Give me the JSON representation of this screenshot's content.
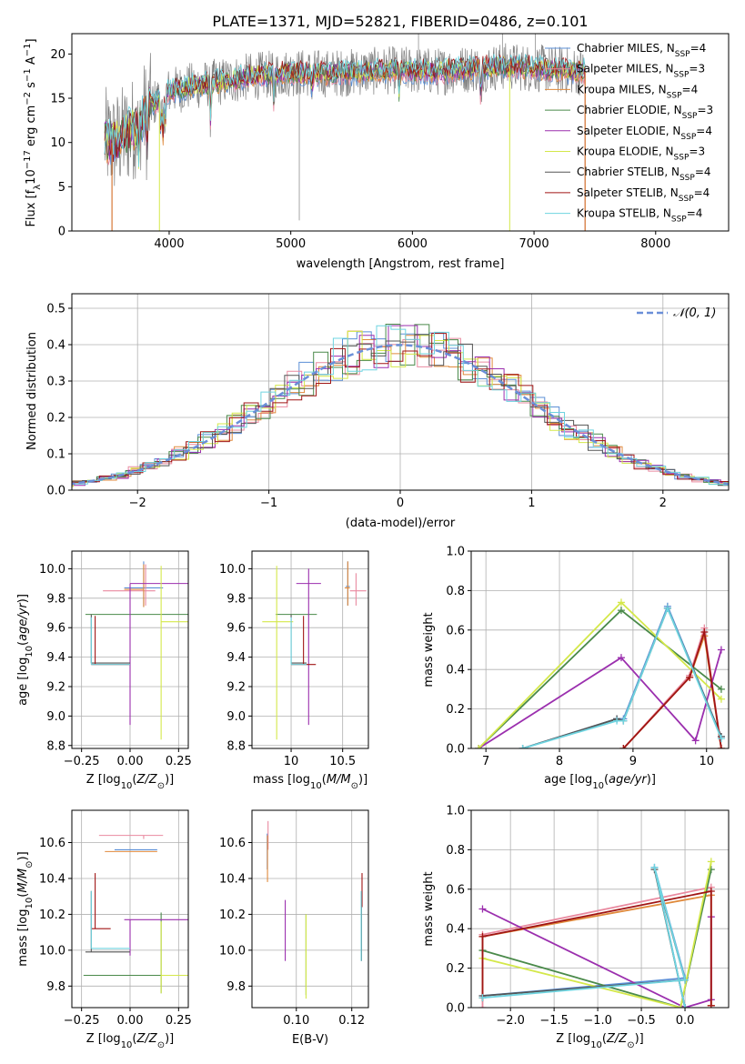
{
  "figure_title": "PLATE=1371, MJD=52821, FIBERID=0486, z=0.101",
  "colors": {
    "Chabrier MILES": "#5b8fd6",
    "Salpeter MILES": "#e98aa0",
    "Kroupa MILES": "#e08a3c",
    "Chabrier ELODIE": "#4a8a4a",
    "Salpeter ELODIE": "#9b2fae",
    "Kroupa ELODIE": "#d4e84a",
    "Chabrier STELIB": "#555555",
    "Salpeter STELIB": "#a01515",
    "Kroupa STELIB": "#6ed4e0"
  },
  "chart_data": [
    {
      "id": "spectrum",
      "type": "line",
      "title": "PLATE=1371, MJD=52821, FIBERID=0486, z=0.101",
      "xlabel": "wavelength [Angstrom, rest frame]",
      "ylabel": "Flux [f_λ 10^-17 erg cm^-2 s^-1 A^-1]",
      "xlim": [
        3200,
        8600
      ],
      "ylim": [
        0,
        22.3
      ],
      "xticks": [
        4000,
        5000,
        6000,
        7000,
        8000
      ],
      "yticks": [
        0,
        5,
        10,
        15,
        20
      ],
      "legend_position": "right",
      "legend": [
        {
          "label": "Chabrier MILES, N",
          "sub": "SSP",
          "suffix": "=4"
        },
        {
          "label": "Salpeter MILES, N",
          "sub": "SSP",
          "suffix": "=3"
        },
        {
          "label": "Kroupa MILES, N",
          "sub": "SSP",
          "suffix": "=4"
        },
        {
          "label": "Chabrier ELODIE, N",
          "sub": "SSP",
          "suffix": "=3"
        },
        {
          "label": "Salpeter ELODIE, N",
          "sub": "SSP",
          "suffix": "=4"
        },
        {
          "label": "Kroupa ELODIE, N",
          "sub": "SSP",
          "suffix": "=3"
        },
        {
          "label": "Chabrier STELIB, N",
          "sub": "SSP",
          "suffix": "=4"
        },
        {
          "label": "Salpeter STELIB, N",
          "sub": "SSP",
          "suffix": "=4"
        },
        {
          "label": "Kroupa STELIB, N",
          "sub": "SSP",
          "suffix": "=4"
        }
      ],
      "continuum": {
        "x": [
          3450,
          3550,
          3700,
          3850,
          4000,
          4200,
          4400,
          4700,
          5000,
          5300,
          5600,
          5900,
          6200,
          6500,
          6800,
          7100,
          7400
        ],
        "y": [
          10.5,
          9.8,
          11.5,
          14.2,
          15.8,
          16.4,
          16.8,
          17.5,
          17.9,
          17.8,
          18.0,
          18.2,
          18.0,
          18.4,
          18.6,
          18.3,
          18.0
        ]
      },
      "model_cutoffs": [
        {
          "model": "Salpeter STELIB",
          "start": 3530,
          "end": 7420
        },
        {
          "model": "Kroupa MILES",
          "start": 3530,
          "end": 7420
        },
        {
          "model": "Kroupa ELODIE",
          "start": 3920,
          "end": 6800
        }
      ]
    },
    {
      "id": "residual-hist",
      "type": "line",
      "xlabel": "(data-model)/error",
      "ylabel": "Normed distribution",
      "xlim": [
        -2.5,
        2.5
      ],
      "ylim": [
        0,
        0.54
      ],
      "xticks": [
        -2,
        -1,
        0,
        1,
        2
      ],
      "yticks": [
        0,
        0.1,
        0.2,
        0.3,
        0.4,
        0.5
      ],
      "legend_position": "top-right",
      "legend_label": "𝒩(0, 1)",
      "gaussian": {
        "mu": 0,
        "sigma": 1
      }
    },
    {
      "id": "age-vs-z",
      "type": "scatter",
      "xlabel": "Z [log10(Z/Z⊙)]",
      "ylabel": "age [log10(age/yr)]",
      "xlim": [
        -0.3,
        0.3
      ],
      "ylim": [
        8.78,
        10.12
      ],
      "xticks": [
        -0.25,
        0.0,
        0.25
      ],
      "xtick_labels": [
        "−0.25",
        "0.00",
        "0.25"
      ],
      "yticks": [
        8.8,
        9.0,
        9.2,
        9.4,
        9.6,
        9.8,
        10.0
      ],
      "points": [
        {
          "model": "Chabrier MILES",
          "x": 0.07,
          "y": 9.87,
          "xerr": [
            0.1,
            0.1
          ],
          "yerr": [
            0.13,
            0.18
          ]
        },
        {
          "model": "Salpeter MILES",
          "x": 0.08,
          "y": 9.85,
          "xerr": [
            0.22,
            0.05
          ],
          "yerr": [
            0.1,
            0.18
          ]
        },
        {
          "model": "Kroupa MILES",
          "x": 0.07,
          "y": 9.86,
          "xerr": [
            0.1,
            0.0
          ],
          "yerr": [
            0.12,
            0.17
          ]
        },
        {
          "model": "Chabrier ELODIE",
          "x": -0.05,
          "y": 9.69,
          "xerr": [
            0.18,
            0.35
          ],
          "yerr": [
            0.0,
            0.0
          ]
        },
        {
          "model": "Salpeter ELODIE",
          "x": 0.0,
          "y": 9.9,
          "xerr": [
            0.0,
            0.3
          ],
          "yerr": [
            0.96,
            0.0
          ]
        },
        {
          "model": "Kroupa ELODIE",
          "x": 0.16,
          "y": 9.64,
          "xerr": [
            0.0,
            0.14
          ],
          "yerr": [
            0.8,
            0.38
          ]
        },
        {
          "model": "Chabrier STELIB",
          "x": -0.2,
          "y": 9.36,
          "xerr": [
            0.0,
            0.2
          ],
          "yerr": [
            0.0,
            0.33
          ]
        },
        {
          "model": "Salpeter STELIB",
          "x": -0.18,
          "y": 9.35,
          "xerr": [
            0.02,
            0.18
          ],
          "yerr": [
            0.0,
            0.33
          ]
        },
        {
          "model": "Kroupa STELIB",
          "x": -0.2,
          "y": 9.35,
          "xerr": [
            0.0,
            0.2
          ],
          "yerr": [
            0.0,
            0.32
          ]
        }
      ]
    },
    {
      "id": "age-vs-mass",
      "type": "scatter",
      "xlabel": "mass [log10(M/M⊙)]",
      "ylabel": "",
      "xlim": [
        9.62,
        10.75
      ],
      "ylim": [
        8.78,
        10.12
      ],
      "xticks": [
        10.0,
        10.5
      ],
      "yticks": [
        8.8,
        9.0,
        9.2,
        9.4,
        9.6,
        9.8,
        10.0
      ],
      "points": [
        {
          "model": "Chabrier MILES",
          "x": 10.55,
          "y": 9.88,
          "xerr": [
            0.02,
            0.02
          ],
          "yerr": [
            0.13,
            0.17
          ]
        },
        {
          "model": "Salpeter MILES",
          "x": 10.63,
          "y": 9.85,
          "xerr": [
            0.06,
            0.1
          ],
          "yerr": [
            0.1,
            0.12
          ]
        },
        {
          "model": "Kroupa MILES",
          "x": 10.55,
          "y": 9.87,
          "xerr": [
            0.03,
            0.02
          ],
          "yerr": [
            0.12,
            0.18
          ]
        },
        {
          "model": "Chabrier ELODIE",
          "x": 9.99,
          "y": 9.69,
          "xerr": [
            0.14,
            0.26
          ],
          "yerr": [
            0.0,
            0.0
          ]
        },
        {
          "model": "Salpeter ELODIE",
          "x": 10.17,
          "y": 9.9,
          "xerr": [
            0.12,
            0.12
          ],
          "yerr": [
            0.96,
            0.1
          ]
        },
        {
          "model": "Kroupa ELODIE",
          "x": 9.86,
          "y": 9.64,
          "xerr": [
            0.14,
            0.16
          ],
          "yerr": [
            0.8,
            0.38
          ]
        },
        {
          "model": "Chabrier STELIB",
          "x": 10.0,
          "y": 9.36,
          "xerr": [
            0.0,
            0.15
          ],
          "yerr": [
            0.0,
            0.33
          ]
        },
        {
          "model": "Salpeter STELIB",
          "x": 10.12,
          "y": 9.35,
          "xerr": [
            0.12,
            0.12
          ],
          "yerr": [
            0.0,
            0.33
          ]
        },
        {
          "model": "Kroupa STELIB",
          "x": 10.0,
          "y": 9.35,
          "xerr": [
            0.0,
            0.15
          ],
          "yerr": [
            0.0,
            0.32
          ]
        }
      ]
    },
    {
      "id": "weight-vs-age",
      "type": "line",
      "xlabel": "age [log10(age/yr)]",
      "ylabel": "mass weight",
      "xlim": [
        6.8,
        10.3
      ],
      "ylim": [
        0,
        1.0
      ],
      "xticks": [
        7,
        8,
        9,
        10
      ],
      "yticks": [
        0.0,
        0.2,
        0.4,
        0.6,
        0.8,
        1.0
      ],
      "series": [
        {
          "model": "Chabrier MILES",
          "x": [
            7.5,
            8.78,
            8.87,
            9.47,
            10.2
          ],
          "y": [
            0.0,
            0.15,
            0.15,
            0.72,
            0.06
          ]
        },
        {
          "model": "Salpeter MILES",
          "x": [
            8.87,
            9.77,
            9.97,
            10.2
          ],
          "y": [
            0.0,
            0.37,
            0.61,
            0.0
          ]
        },
        {
          "model": "Kroupa MILES",
          "x": [
            8.87,
            9.77,
            9.97,
            10.2
          ],
          "y": [
            0.0,
            0.36,
            0.57,
            0.0
          ]
        },
        {
          "model": "Chabrier ELODIE",
          "x": [
            6.9,
            8.84,
            10.2
          ],
          "y": [
            0.0,
            0.7,
            0.3
          ]
        },
        {
          "model": "Salpeter ELODIE",
          "x": [
            6.9,
            8.84,
            9.85,
            10.2
          ],
          "y": [
            0.0,
            0.46,
            0.04,
            0.5
          ]
        },
        {
          "model": "Kroupa ELODIE",
          "x": [
            6.9,
            8.84,
            10.2
          ],
          "y": [
            0.0,
            0.74,
            0.25
          ]
        },
        {
          "model": "Chabrier STELIB",
          "x": [
            7.5,
            8.78,
            8.87,
            9.47,
            10.2
          ],
          "y": [
            0.0,
            0.15,
            0.14,
            0.71,
            0.06
          ]
        },
        {
          "model": "Salpeter STELIB",
          "x": [
            8.87,
            9.77,
            9.97,
            10.2
          ],
          "y": [
            0.0,
            0.36,
            0.59,
            0.0
          ]
        },
        {
          "model": "Kroupa STELIB",
          "x": [
            7.5,
            8.78,
            8.87,
            9.47,
            10.2
          ],
          "y": [
            0.0,
            0.14,
            0.14,
            0.71,
            0.05
          ]
        }
      ]
    },
    {
      "id": "mass-vs-z",
      "type": "scatter",
      "xlabel": "Z [log10(Z/Z⊙)]",
      "ylabel": "mass [log10(M/M⊙)]",
      "xlim": [
        -0.3,
        0.3
      ],
      "ylim": [
        9.68,
        10.78
      ],
      "xticks": [
        -0.25,
        0.0,
        0.25
      ],
      "xtick_labels": [
        "−0.25",
        "0.00",
        "0.25"
      ],
      "yticks": [
        9.8,
        10.0,
        10.2,
        10.4,
        10.6
      ],
      "points": [
        {
          "model": "Chabrier MILES",
          "x": 0.07,
          "y": 10.56,
          "xerr": [
            0.15,
            0.07
          ],
          "yerr": [
            0.0,
            0.0
          ]
        },
        {
          "model": "Salpeter MILES",
          "x": 0.07,
          "y": 10.64,
          "xerr": [
            0.23,
            0.1
          ],
          "yerr": [
            0.02,
            0.0
          ]
        },
        {
          "model": "Kroupa MILES",
          "x": 0.07,
          "y": 10.55,
          "xerr": [
            0.2,
            0.07
          ],
          "yerr": [
            0.0,
            0.0
          ]
        },
        {
          "model": "Chabrier ELODIE",
          "x": 0.16,
          "y": 9.86,
          "xerr": [
            0.4,
            0.14
          ],
          "yerr": [
            0.1,
            0.35
          ]
        },
        {
          "model": "Salpeter ELODIE",
          "x": 0.0,
          "y": 10.17,
          "xerr": [
            0.03,
            0.3
          ],
          "yerr": [
            0.2,
            0.0
          ]
        },
        {
          "model": "Kroupa ELODIE",
          "x": 0.16,
          "y": 9.86,
          "xerr": [
            0.0,
            0.14
          ],
          "yerr": [
            0.1,
            0.3
          ]
        },
        {
          "model": "Chabrier STELIB",
          "x": -0.2,
          "y": 9.99,
          "xerr": [
            0.03,
            0.2
          ],
          "yerr": [
            0.0,
            0.34
          ]
        },
        {
          "model": "Salpeter STELIB",
          "x": -0.18,
          "y": 10.12,
          "xerr": [
            0.02,
            0.08
          ],
          "yerr": [
            0.0,
            0.31
          ]
        },
        {
          "model": "Kroupa STELIB",
          "x": -0.2,
          "y": 10.01,
          "xerr": [
            0.0,
            0.2
          ],
          "yerr": [
            0.0,
            0.32
          ]
        }
      ]
    },
    {
      "id": "mass-vs-ebv",
      "type": "scatter",
      "xlabel": "E(B-V)",
      "ylabel": "",
      "xlim": [
        0.084,
        0.126
      ],
      "ylim": [
        9.68,
        10.78
      ],
      "xticks": [
        0.1,
        0.12
      ],
      "xtick_labels": [
        "0.10",
        "0.12"
      ],
      "yticks": [
        9.8,
        10.0,
        10.2,
        10.4,
        10.6
      ],
      "points": [
        {
          "model": "Chabrier MILES",
          "x": 0.0895,
          "y": 10.55,
          "xerr": [
            0,
            0
          ],
          "yerr": [
            0.1,
            0.1
          ]
        },
        {
          "model": "Salpeter MILES",
          "x": 0.0898,
          "y": 10.64,
          "xerr": [
            0,
            0
          ],
          "yerr": [
            0.08,
            0.08
          ]
        },
        {
          "model": "Kroupa MILES",
          "x": 0.0896,
          "y": 10.5,
          "xerr": [
            0,
            0
          ],
          "yerr": [
            0.12,
            0.14
          ]
        },
        {
          "model": "Chabrier ELODIE",
          "x": 0.1035,
          "y": 9.95,
          "xerr": [
            0,
            0
          ],
          "yerr": [
            0.2,
            0.25
          ]
        },
        {
          "model": "Salpeter ELODIE",
          "x": 0.096,
          "y": 10.12,
          "xerr": [
            0,
            0
          ],
          "yerr": [
            0.18,
            0.16
          ]
        },
        {
          "model": "Kroupa ELODIE",
          "x": 0.1035,
          "y": 9.86,
          "xerr": [
            0,
            0
          ],
          "yerr": [
            0.13,
            0.34
          ]
        },
        {
          "model": "Chabrier STELIB",
          "x": 0.1235,
          "y": 10.18,
          "xerr": [
            0,
            0
          ],
          "yerr": [
            0.24,
            0.14
          ]
        },
        {
          "model": "Salpeter STELIB",
          "x": 0.1237,
          "y": 10.32,
          "xerr": [
            0,
            0
          ],
          "yerr": [
            0.08,
            0.11
          ]
        },
        {
          "model": "Kroupa STELIB",
          "x": 0.1234,
          "y": 10.15,
          "xerr": [
            0,
            0
          ],
          "yerr": [
            0.21,
            0.18
          ]
        }
      ]
    },
    {
      "id": "weight-vs-z",
      "type": "line",
      "xlabel": "Z [log10(Z/Z⊙)]",
      "ylabel": "mass weight",
      "xlim": [
        -2.45,
        0.5
      ],
      "ylim": [
        0,
        1.0
      ],
      "xticks": [
        -2.0,
        -1.5,
        -1.0,
        -0.5,
        0.0
      ],
      "xtick_labels": [
        "−2.0",
        "−1.5",
        "−1.0",
        "−0.5",
        "0.0"
      ],
      "yticks": [
        0.0,
        0.2,
        0.4,
        0.6,
        0.8,
        1.0
      ],
      "series": [
        {
          "model": "Chabrier MILES",
          "x": [
            -2.32,
            0.0,
            -0.35,
            0.0
          ],
          "y": [
            0.06,
            0.15,
            0.71,
            0.0
          ]
        },
        {
          "model": "Salpeter MILES",
          "x": [
            -2.32,
            -2.32,
            0.3,
            0.3
          ],
          "y": [
            0.0,
            0.37,
            0.61,
            0.01
          ]
        },
        {
          "model": "Kroupa MILES",
          "x": [
            -2.32,
            -2.32,
            0.3,
            0.3
          ],
          "y": [
            0.05,
            0.36,
            0.57,
            0.01
          ]
        },
        {
          "model": "Chabrier ELODIE",
          "x": [
            -2.32,
            -0.05,
            0.3
          ],
          "y": [
            0.29,
            0.0,
            0.7
          ]
        },
        {
          "model": "Salpeter ELODIE",
          "x": [
            -2.32,
            0.0,
            0.3,
            0.3
          ],
          "y": [
            0.5,
            0.0,
            0.04,
            0.46
          ]
        },
        {
          "model": "Kroupa ELODIE",
          "x": [
            -2.32,
            -0.05,
            0.3
          ],
          "y": [
            0.25,
            0.0,
            0.74
          ]
        },
        {
          "model": "Chabrier STELIB",
          "x": [
            -2.32,
            0.0,
            -0.35,
            0.0
          ],
          "y": [
            0.06,
            0.14,
            0.7,
            0.0
          ]
        },
        {
          "model": "Salpeter STELIB",
          "x": [
            -2.32,
            -2.32,
            0.3,
            0.3
          ],
          "y": [
            0.05,
            0.36,
            0.59,
            0.01
          ]
        },
        {
          "model": "Kroupa STELIB",
          "x": [
            -2.32,
            0.0,
            -0.35,
            0.0
          ],
          "y": [
            0.05,
            0.14,
            0.71,
            0.0
          ]
        }
      ]
    }
  ]
}
